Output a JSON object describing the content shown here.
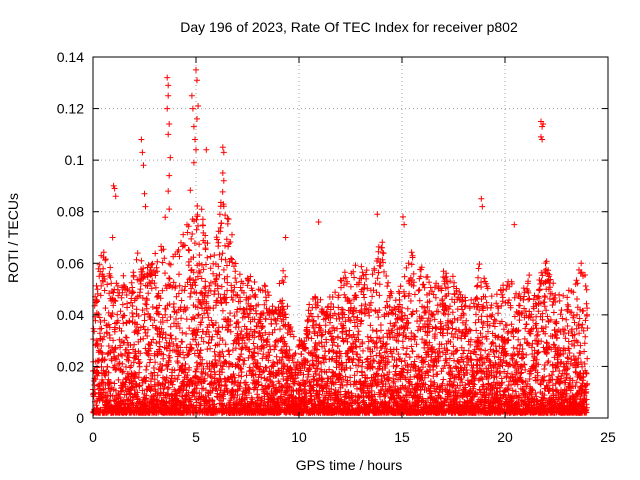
{
  "chart_data": {
    "type": "scatter",
    "title": "Day 196 of 2023, Rate Of TEC Index for receiver p802",
    "xlabel": "GPS time / hours",
    "ylabel": "ROTI / TECUs",
    "xlim": [
      0,
      25
    ],
    "ylim": [
      0,
      0.14
    ],
    "xticks": [
      0,
      5,
      10,
      15,
      20,
      25
    ],
    "xtick_labels": [
      "0",
      "5",
      "10",
      "15",
      "20",
      "25"
    ],
    "yticks": [
      0,
      0.02,
      0.04,
      0.06,
      0.08,
      0.1,
      0.12,
      0.14
    ],
    "ytick_labels": [
      "0",
      "0.02",
      "0.04",
      "0.06",
      "0.08",
      "0.1",
      "0.12",
      "0.14"
    ],
    "grid": true,
    "marker": "+",
    "marker_color": "#ff0000",
    "envelope": [
      [
        0.0,
        0.04
      ],
      [
        0.25,
        0.06
      ],
      [
        0.5,
        0.065
      ],
      [
        0.75,
        0.06
      ],
      [
        1.0,
        0.058
      ],
      [
        1.25,
        0.05
      ],
      [
        1.5,
        0.056
      ],
      [
        1.75,
        0.05
      ],
      [
        2.0,
        0.06
      ],
      [
        2.25,
        0.068
      ],
      [
        2.5,
        0.06
      ],
      [
        2.75,
        0.06
      ],
      [
        3.0,
        0.065
      ],
      [
        3.25,
        0.065
      ],
      [
        3.5,
        0.08
      ],
      [
        3.75,
        0.06
      ],
      [
        4.0,
        0.07
      ],
      [
        4.25,
        0.07
      ],
      [
        4.5,
        0.075
      ],
      [
        4.75,
        0.09
      ],
      [
        5.0,
        0.085
      ],
      [
        5.25,
        0.085
      ],
      [
        5.5,
        0.07
      ],
      [
        5.75,
        0.065
      ],
      [
        6.0,
        0.07
      ],
      [
        6.25,
        0.09
      ],
      [
        6.5,
        0.08
      ],
      [
        6.75,
        0.072
      ],
      [
        7.0,
        0.06
      ],
      [
        7.25,
        0.055
      ],
      [
        7.5,
        0.055
      ],
      [
        7.75,
        0.055
      ],
      [
        8.0,
        0.052
      ],
      [
        8.25,
        0.055
      ],
      [
        8.5,
        0.05
      ],
      [
        8.75,
        0.05
      ],
      [
        9.0,
        0.055
      ],
      [
        9.25,
        0.065
      ],
      [
        9.5,
        0.04
      ],
      [
        9.75,
        0.032
      ],
      [
        10.0,
        0.03
      ],
      [
        10.25,
        0.035
      ],
      [
        10.5,
        0.045
      ],
      [
        10.75,
        0.05
      ],
      [
        11.0,
        0.055
      ],
      [
        11.25,
        0.04
      ],
      [
        11.5,
        0.05
      ],
      [
        11.75,
        0.05
      ],
      [
        12.0,
        0.058
      ],
      [
        12.25,
        0.06
      ],
      [
        12.5,
        0.062
      ],
      [
        12.75,
        0.06
      ],
      [
        13.0,
        0.06
      ],
      [
        13.25,
        0.058
      ],
      [
        13.5,
        0.055
      ],
      [
        13.75,
        0.062
      ],
      [
        14.0,
        0.072
      ],
      [
        14.25,
        0.055
      ],
      [
        14.5,
        0.05
      ],
      [
        14.75,
        0.052
      ],
      [
        15.0,
        0.055
      ],
      [
        15.25,
        0.06
      ],
      [
        15.5,
        0.065
      ],
      [
        15.75,
        0.058
      ],
      [
        16.0,
        0.06
      ],
      [
        16.25,
        0.055
      ],
      [
        16.5,
        0.05
      ],
      [
        16.75,
        0.055
      ],
      [
        17.0,
        0.058
      ],
      [
        17.25,
        0.055
      ],
      [
        17.5,
        0.055
      ],
      [
        17.75,
        0.05
      ],
      [
        18.0,
        0.05
      ],
      [
        18.25,
        0.05
      ],
      [
        18.5,
        0.05
      ],
      [
        18.75,
        0.06
      ],
      [
        19.0,
        0.055
      ],
      [
        19.25,
        0.05
      ],
      [
        19.5,
        0.045
      ],
      [
        19.75,
        0.052
      ],
      [
        20.0,
        0.055
      ],
      [
        20.25,
        0.055
      ],
      [
        20.5,
        0.052
      ],
      [
        20.75,
        0.05
      ],
      [
        21.0,
        0.06
      ],
      [
        21.25,
        0.055
      ],
      [
        21.5,
        0.05
      ],
      [
        21.75,
        0.06
      ],
      [
        22.0,
        0.062
      ],
      [
        22.25,
        0.055
      ],
      [
        22.5,
        0.05
      ],
      [
        22.75,
        0.048
      ],
      [
        23.0,
        0.05
      ],
      [
        23.25,
        0.052
      ],
      [
        23.5,
        0.058
      ],
      [
        23.75,
        0.062
      ],
      [
        24.0,
        0.055
      ]
    ],
    "outliers": [
      [
        0.1,
        0.047
      ],
      [
        0.3,
        0.055
      ],
      [
        0.4,
        0.063
      ],
      [
        0.95,
        0.07
      ],
      [
        1.0,
        0.09
      ],
      [
        1.05,
        0.089
      ],
      [
        1.1,
        0.086
      ],
      [
        2.35,
        0.108
      ],
      [
        2.4,
        0.103
      ],
      [
        2.45,
        0.098
      ],
      [
        2.5,
        0.087
      ],
      [
        2.55,
        0.082
      ],
      [
        3.6,
        0.132
      ],
      [
        3.65,
        0.129
      ],
      [
        3.65,
        0.125
      ],
      [
        3.6,
        0.12
      ],
      [
        3.7,
        0.114
      ],
      [
        3.65,
        0.11
      ],
      [
        3.75,
        0.101
      ],
      [
        3.7,
        0.094
      ],
      [
        3.65,
        0.088
      ],
      [
        3.7,
        0.081
      ],
      [
        4.8,
        0.125
      ],
      [
        4.85,
        0.12
      ],
      [
        4.9,
        0.113
      ],
      [
        4.95,
        0.108
      ],
      [
        4.9,
        0.099
      ],
      [
        5.0,
        0.135
      ],
      [
        5.05,
        0.131
      ],
      [
        5.1,
        0.121
      ],
      [
        5.05,
        0.116
      ],
      [
        5.0,
        0.104
      ],
      [
        5.5,
        0.104
      ],
      [
        6.3,
        0.105
      ],
      [
        6.35,
        0.103
      ],
      [
        6.3,
        0.095
      ],
      [
        6.35,
        0.092
      ],
      [
        9.35,
        0.07
      ],
      [
        10.95,
        0.076
      ],
      [
        13.8,
        0.079
      ],
      [
        15.05,
        0.078
      ],
      [
        15.1,
        0.075
      ],
      [
        18.85,
        0.085
      ],
      [
        18.9,
        0.082
      ],
      [
        20.45,
        0.075
      ],
      [
        21.75,
        0.115
      ],
      [
        21.8,
        0.113
      ],
      [
        21.85,
        0.114
      ],
      [
        21.75,
        0.109
      ],
      [
        21.8,
        0.108
      ]
    ]
  }
}
